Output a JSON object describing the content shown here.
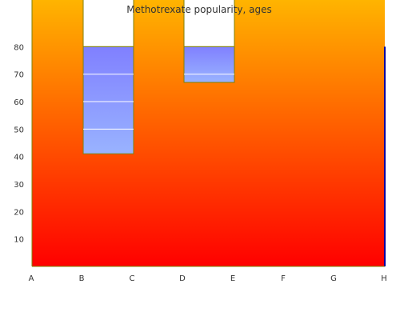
{
  "chart_data": {
    "type": "bar",
    "title": "Methotrexate popularity, ages",
    "xlabel": "",
    "ylabel": "",
    "x_ticks": [
      "A",
      "B",
      "C",
      "D",
      "E",
      "F",
      "G",
      "H"
    ],
    "y_ticks": [
      10,
      20,
      30,
      40,
      50,
      60,
      70,
      80
    ],
    "ylim": [
      0,
      97
    ],
    "grid": false,
    "legend": "none",
    "bars": [
      {
        "x_from": "B",
        "x_to": "C",
        "low": 41,
        "high": 80
      },
      {
        "x_from": "D",
        "x_to": "E",
        "low": 67,
        "high": 80
      }
    ],
    "bar_bands": [
      50,
      60,
      70
    ],
    "colors": {
      "background_top": "#ffb400",
      "background_bottom": "#ff0000",
      "bar_top": "#8080ff",
      "bar_bottom": "#99b3ff",
      "bar_band": "#ffffff",
      "cutout": "#ffffff",
      "border": "#808000",
      "right_axis": "#0000a0",
      "text": "#333333"
    }
  }
}
